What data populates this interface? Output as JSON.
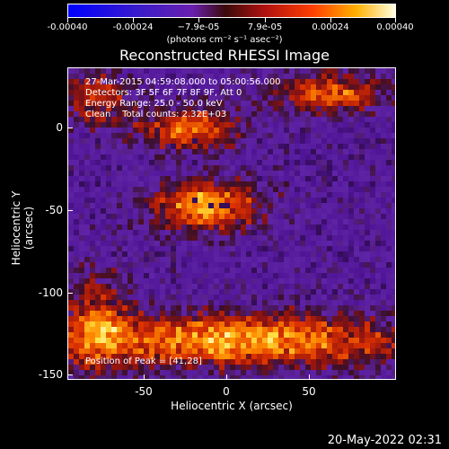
{
  "colorbar": {
    "labels": [
      "-0.00040",
      "-0.00024",
      "−7.9e-05",
      "7.9e-05",
      "0.00024",
      "0.00040"
    ],
    "units": "(photons cm⁻² s⁻¹ asec⁻²)"
  },
  "plot": {
    "title": "Reconstructed RHESSI Image",
    "info": {
      "line1": "27-Mar-2015 04:59:08.000 to 05:00:56.000",
      "line2": "Detectors: 3F 5F 6F 7F 8F 9F, Att 0",
      "line3": "Energy Range: 25.0 - 50.0 keV",
      "line4": "Clean    Total counts: 2.32E+03"
    },
    "peak": "Position of Peak = [41,28]",
    "y_axis": {
      "title": "Heliocentric Y (arcsec)",
      "ticks": [
        "0",
        "-50",
        "-100",
        "-150"
      ]
    },
    "x_axis": {
      "title": "Heliocentric X (arcsec)",
      "ticks": [
        "-50",
        "0",
        "50"
      ]
    }
  },
  "footer": {
    "date": "20-May-2022 02:31"
  }
}
